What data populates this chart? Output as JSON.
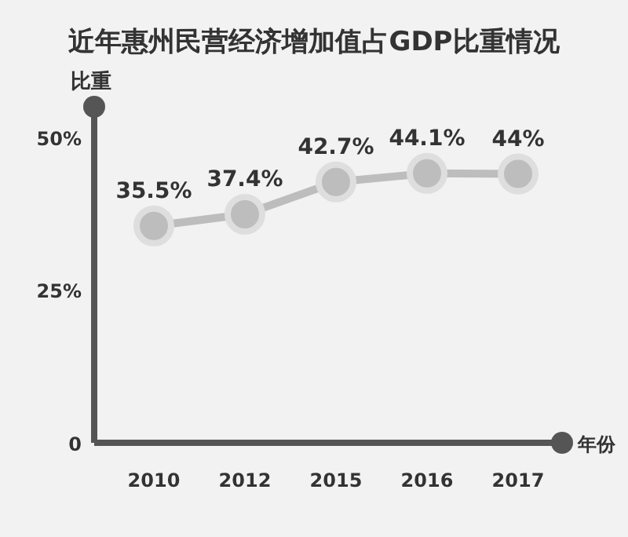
{
  "chart_data": {
    "type": "line",
    "title": "近年惠州民营经济增加值占GDP比重情况",
    "ylabel": "比重",
    "xlabel": "年份",
    "categories": [
      "2010",
      "2012",
      "2015",
      "2016",
      "2017"
    ],
    "series": [
      {
        "color": "#bdbdbd",
        "values": [
          35.5,
          37.4,
          42.7,
          44.1,
          44
        ],
        "value_labels": [
          "35.5%",
          "37.4%",
          "42.7%",
          "44.1%",
          "44%"
        ]
      }
    ],
    "ylim": [
      0,
      55
    ],
    "yticks": [
      0,
      {
        "value": 25,
        "label": "25%"
      },
      {
        "value": 50,
        "label": "50%"
      }
    ],
    "marker": "circle",
    "line_style": "solid",
    "grid": false
  }
}
